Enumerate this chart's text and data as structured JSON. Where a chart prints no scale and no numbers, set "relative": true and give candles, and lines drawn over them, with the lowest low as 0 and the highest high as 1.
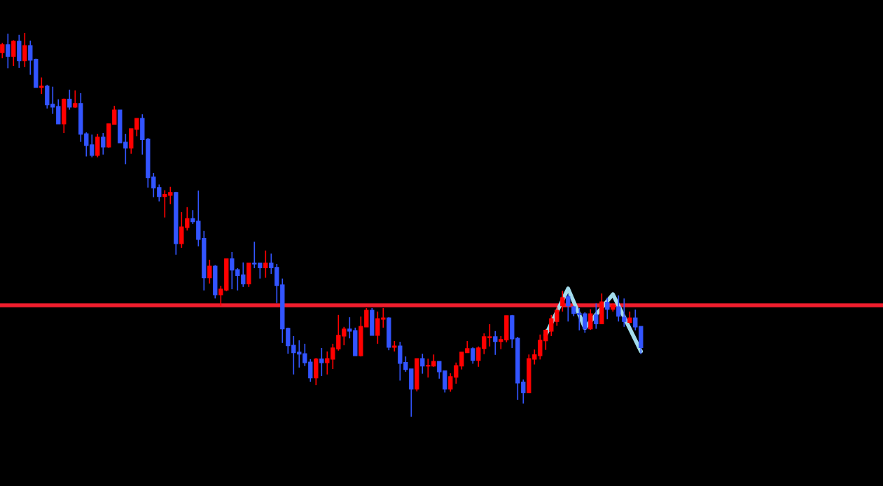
{
  "chart_data": {
    "type": "candlestick",
    "relative": true,
    "categories": [
      null,
      null,
      null,
      null,
      null,
      null,
      null,
      null,
      null,
      null,
      null,
      null,
      null,
      null,
      null,
      null,
      null,
      null,
      null,
      null,
      null,
      null,
      null,
      null,
      null,
      null,
      null,
      null,
      null,
      null,
      null,
      null,
      null,
      null,
      null,
      null,
      null,
      null,
      null,
      null,
      null,
      null,
      null,
      null,
      null,
      null,
      null,
      null,
      null,
      null,
      null,
      null,
      null,
      null,
      null,
      null,
      null,
      null,
      null,
      null,
      null,
      null,
      null,
      null,
      null,
      null,
      null,
      null,
      null,
      null,
      null,
      null,
      null,
      null,
      null,
      null,
      null,
      null,
      null,
      null,
      null,
      null,
      null,
      null,
      null,
      null,
      null,
      null,
      null,
      null,
      null,
      null,
      null,
      null,
      null,
      null,
      null,
      null,
      null,
      null,
      null,
      null,
      null,
      null,
      null,
      null,
      null,
      null,
      null,
      null,
      null,
      null,
      null,
      null,
      null
    ],
    "colors": [
      "#ff0000",
      "#3355ff"
    ],
    "series": [
      {
        "ohlc": [
          [
            0.949,
            0.974,
            0.934,
            0.969
          ],
          [
            0.969,
            0.998,
            0.908,
            0.939
          ],
          [
            0.939,
            0.981,
            0.914,
            0.978
          ],
          [
            0.978,
            0.995,
            0.909,
            0.928
          ],
          [
            0.928,
            1.0,
            0.911,
            0.967
          ],
          [
            0.967,
            0.98,
            0.891,
            0.929
          ],
          [
            0.931,
            0.933,
            0.858,
            0.858
          ],
          [
            0.858,
            0.884,
            0.841,
            0.861
          ],
          [
            0.861,
            0.865,
            0.803,
            0.813
          ],
          [
            0.814,
            0.86,
            0.789,
            0.807
          ],
          [
            0.808,
            0.827,
            0.763,
            0.763
          ],
          [
            0.763,
            0.829,
            0.739,
            0.827
          ],
          [
            0.827,
            0.852,
            0.8,
            0.807
          ],
          [
            0.807,
            0.85,
            0.805,
            0.816
          ],
          [
            0.816,
            0.843,
            0.716,
            0.736
          ],
          [
            0.737,
            0.741,
            0.678,
            0.707
          ],
          [
            0.708,
            0.735,
            0.676,
            0.681
          ],
          [
            0.681,
            0.737,
            0.676,
            0.728
          ],
          [
            0.728,
            0.739,
            0.683,
            0.703
          ],
          [
            0.703,
            0.763,
            0.701,
            0.763
          ],
          [
            0.762,
            0.81,
            0.762,
            0.799
          ],
          [
            0.799,
            0.799,
            0.714,
            0.714
          ],
          [
            0.715,
            0.737,
            0.658,
            0.7
          ],
          [
            0.7,
            0.75,
            0.685,
            0.75
          ],
          [
            0.749,
            0.777,
            0.731,
            0.777
          ],
          [
            0.777,
            0.788,
            0.683,
            0.722
          ],
          [
            0.723,
            0.726,
            0.597,
            0.623
          ],
          [
            0.624,
            0.635,
            0.572,
            0.596
          ],
          [
            0.597,
            0.605,
            0.561,
            0.574
          ],
          [
            0.574,
            0.59,
            0.519,
            0.579
          ],
          [
            0.577,
            0.599,
            0.554,
            0.584
          ],
          [
            0.584,
            0.586,
            0.422,
            0.451
          ],
          [
            0.451,
            0.533,
            0.44,
            0.494
          ],
          [
            0.493,
            0.546,
            0.485,
            0.516
          ],
          [
            0.516,
            0.538,
            0.502,
            0.508
          ],
          [
            0.509,
            0.589,
            0.444,
            0.462
          ],
          [
            0.464,
            0.484,
            0.329,
            0.362
          ],
          [
            0.362,
            0.409,
            0.347,
            0.392
          ],
          [
            0.392,
            0.395,
            0.308,
            0.318
          ],
          [
            0.318,
            0.341,
            0.289,
            0.332
          ],
          [
            0.33,
            0.411,
            0.327,
            0.411
          ],
          [
            0.411,
            0.429,
            0.332,
            0.382
          ],
          [
            0.383,
            0.387,
            0.329,
            0.368
          ],
          [
            0.369,
            0.402,
            0.338,
            0.346
          ],
          [
            0.346,
            0.4,
            0.338,
            0.4
          ],
          [
            0.4,
            0.456,
            0.387,
            0.398
          ],
          [
            0.4,
            0.4,
            0.36,
            0.388
          ],
          [
            0.388,
            0.433,
            0.362,
            0.4
          ],
          [
            0.4,
            0.425,
            0.372,
            0.388
          ],
          [
            0.389,
            0.398,
            0.296,
            0.342
          ],
          [
            0.343,
            0.36,
            0.192,
            0.229
          ],
          [
            0.23,
            0.232,
            0.164,
            0.185
          ],
          [
            0.186,
            0.21,
            0.11,
            0.167
          ],
          [
            0.168,
            0.199,
            0.128,
            0.163
          ],
          [
            0.164,
            0.19,
            0.132,
            0.141
          ],
          [
            0.142,
            0.15,
            0.091,
            0.101
          ],
          [
            0.101,
            0.153,
            0.082,
            0.15
          ],
          [
            0.15,
            0.179,
            0.106,
            0.141
          ],
          [
            0.141,
            0.17,
            0.11,
            0.151
          ],
          [
            0.15,
            0.19,
            0.124,
            0.179
          ],
          [
            0.177,
            0.265,
            0.172,
            0.212
          ],
          [
            0.21,
            0.234,
            0.186,
            0.228
          ],
          [
            0.228,
            0.259,
            0.204,
            0.223
          ],
          [
            0.224,
            0.232,
            0.159,
            0.159
          ],
          [
            0.159,
            0.261,
            0.157,
            0.235
          ],
          [
            0.234,
            0.283,
            0.234,
            0.277
          ],
          [
            0.277,
            0.283,
            0.212,
            0.212
          ],
          [
            0.212,
            0.274,
            0.19,
            0.255
          ],
          [
            0.254,
            0.283,
            0.232,
            0.257
          ],
          [
            0.257,
            0.259,
            0.173,
            0.181
          ],
          [
            0.181,
            0.197,
            0.17,
            0.184
          ],
          [
            0.184,
            0.195,
            0.094,
            0.139
          ],
          [
            0.141,
            0.157,
            0.117,
            0.123
          ],
          [
            0.124,
            0.124,
            0.0,
            0.072
          ],
          [
            0.072,
            0.151,
            0.066,
            0.151
          ],
          [
            0.151,
            0.164,
            0.112,
            0.132
          ],
          [
            0.132,
            0.151,
            0.102,
            0.133
          ],
          [
            0.132,
            0.162,
            0.13,
            0.144
          ],
          [
            0.144,
            0.144,
            0.099,
            0.117
          ],
          [
            0.119,
            0.119,
            0.063,
            0.072
          ],
          [
            0.072,
            0.113,
            0.065,
            0.104
          ],
          [
            0.103,
            0.141,
            0.086,
            0.133
          ],
          [
            0.132,
            0.168,
            0.123,
            0.168
          ],
          [
            0.167,
            0.197,
            0.167,
            0.177
          ],
          [
            0.177,
            0.181,
            0.138,
            0.147
          ],
          [
            0.147,
            0.183,
            0.13,
            0.179
          ],
          [
            0.178,
            0.217,
            0.163,
            0.208
          ],
          [
            0.206,
            0.241,
            0.183,
            0.208
          ],
          [
            0.208,
            0.223,
            0.161,
            0.196
          ],
          [
            0.196,
            0.21,
            0.176,
            0.201
          ],
          [
            0.2,
            0.263,
            0.194,
            0.263
          ],
          [
            0.263,
            0.265,
            0.179,
            0.203
          ],
          [
            0.204,
            0.208,
            0.044,
            0.088
          ],
          [
            0.09,
            0.097,
            0.034,
            0.063
          ],
          [
            0.063,
            0.162,
            0.063,
            0.151
          ],
          [
            0.15,
            0.175,
            0.136,
            0.161
          ],
          [
            0.159,
            0.214,
            0.149,
            0.199
          ],
          [
            0.198,
            0.228,
            0.174,
            0.225
          ],
          [
            0.223,
            0.265,
            0.21,
            0.255
          ],
          [
            0.248,
            0.286,
            0.237,
            0.277
          ],
          [
            0.289,
            0.328,
            0.274,
            0.31
          ],
          [
            0.312,
            0.319,
            0.248,
            0.289
          ],
          [
            0.286,
            0.289,
            0.262,
            0.269
          ],
          [
            0.269,
            0.283,
            0.225,
            0.266
          ],
          [
            0.268,
            0.272,
            0.219,
            0.229
          ],
          [
            0.229,
            0.28,
            0.226,
            0.268
          ],
          [
            0.265,
            0.295,
            0.229,
            0.242
          ],
          [
            0.242,
            0.321,
            0.242,
            0.299
          ],
          [
            0.298,
            0.31,
            0.254,
            0.28
          ],
          [
            0.28,
            0.295,
            0.274,
            0.29
          ],
          [
            0.286,
            0.316,
            0.248,
            0.262
          ],
          [
            0.259,
            0.308,
            0.234,
            0.248
          ],
          [
            0.246,
            0.274,
            0.243,
            0.257
          ],
          [
            0.257,
            0.279,
            0.225,
            0.234
          ],
          [
            0.235,
            0.235,
            0.163,
            0.18
          ]
        ]
      },
      {
        "type": "line",
        "color": "#a3dcec",
        "values": [
          null,
          null,
          null,
          null,
          null,
          null,
          null,
          null,
          null,
          null,
          null,
          null,
          null,
          null,
          null,
          null,
          null,
          null,
          null,
          null,
          null,
          null,
          null,
          null,
          null,
          null,
          null,
          null,
          null,
          null,
          null,
          null,
          null,
          null,
          null,
          null,
          null,
          null,
          null,
          null,
          null,
          null,
          null,
          null,
          null,
          null,
          null,
          null,
          null,
          null,
          null,
          null,
          null,
          null,
          null,
          null,
          null,
          null,
          null,
          null,
          null,
          null,
          null,
          null,
          null,
          null,
          null,
          null,
          null,
          null,
          null,
          null,
          null,
          null,
          null,
          null,
          null,
          null,
          null,
          null,
          null,
          null,
          null,
          null,
          null,
          null,
          null,
          null,
          null,
          null,
          null,
          null,
          null,
          null,
          null,
          null,
          null,
          0.213,
          null,
          null,
          null,
          0.334,
          null,
          null,
          0.231,
          null,
          null,
          null,
          null,
          0.319,
          null,
          null,
          null,
          null,
          0.17
        ]
      }
    ],
    "ref_lines": [
      {
        "axis": "y",
        "value": 0.29,
        "color": "#f01d2d"
      }
    ]
  }
}
